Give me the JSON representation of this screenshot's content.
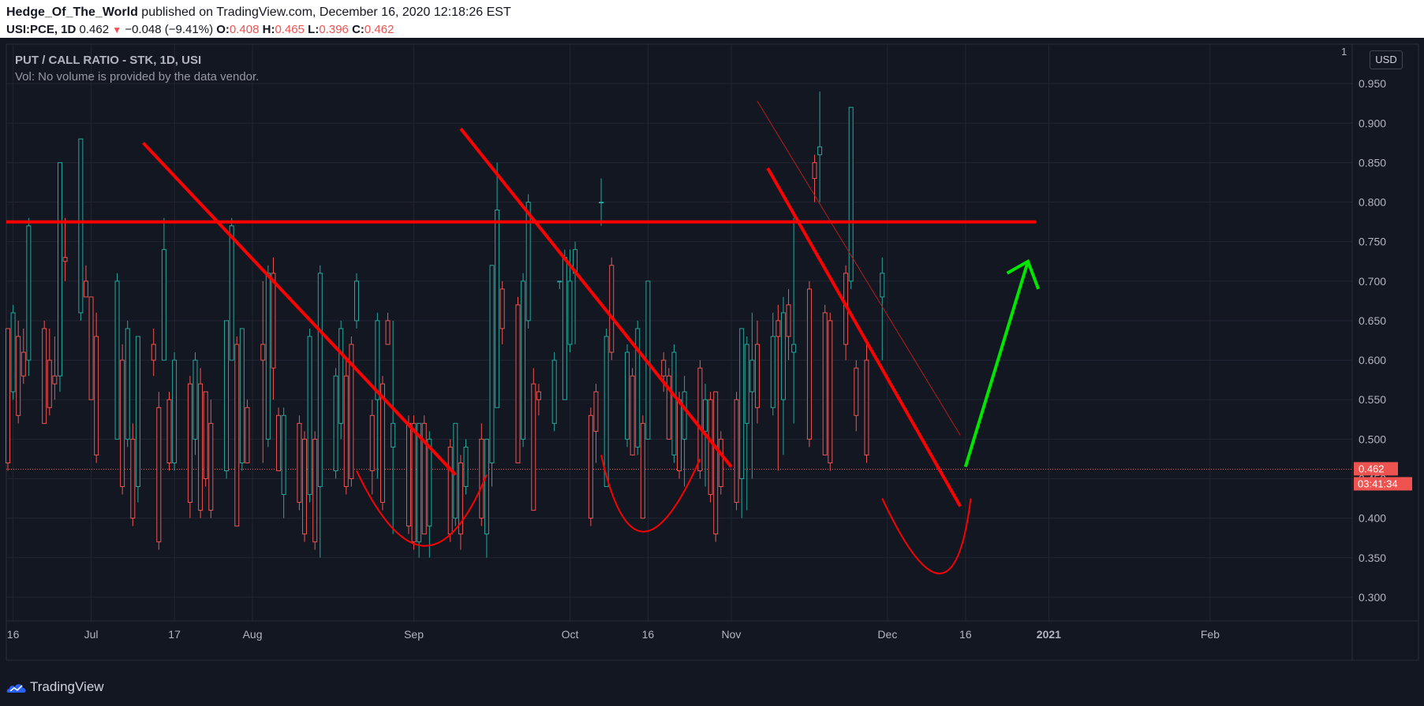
{
  "header": {
    "author": "Hedge_Of_The_World",
    "published_text": "published on TradingView.com, December 16, 2020 12:18:26 EST",
    "symbol": "USI:PCE, 1D",
    "last": "0.462",
    "change": "−0.048 (−9.41%)",
    "o_label": "O:",
    "o_value": "0.408",
    "h_label": "H:",
    "h_value": "0.465",
    "l_label": "L:",
    "l_value": "0.396",
    "c_label": "C:",
    "c_value": "0.462"
  },
  "legend": {
    "title": "PUT / CALL RATIO - STK, 1D, USI",
    "volume_note": "Vol: No volume is provided by the data vendor."
  },
  "axis": {
    "currency": "USD",
    "top_tick": "1",
    "price_label": "0.462",
    "countdown_label": "03:41:34"
  },
  "footer": {
    "brand": "TradingView"
  },
  "colors": {
    "up": "#26a69a",
    "down": "#ef5350",
    "line_red": "#ff0000",
    "arrow_green": "#00e600",
    "grid": "#232632",
    "background": "#131722"
  },
  "chart_data": {
    "type": "candlestick",
    "ylim": [
      0.27,
      1.0
    ],
    "y_ticks": [
      0.3,
      0.35,
      0.4,
      0.45,
      0.5,
      0.55,
      0.6,
      0.65,
      0.7,
      0.75,
      0.8,
      0.85,
      0.9,
      0.95
    ],
    "y_tick_labels": [
      "0.300",
      "0.350",
      "0.400",
      "0.450",
      "0.500",
      "0.550",
      "0.600",
      "0.650",
      "0.700",
      "0.750",
      "0.800",
      "0.850",
      "0.900",
      "0.950"
    ],
    "date_range": [
      "2020-06-15",
      "2021-02-28"
    ],
    "x_ticks": [
      {
        "date": "2020-06-16",
        "label": "16",
        "bold": false
      },
      {
        "date": "2020-07-01",
        "label": "Jul",
        "bold": false
      },
      {
        "date": "2020-07-17",
        "label": "17",
        "bold": false
      },
      {
        "date": "2020-08-01",
        "label": "Aug",
        "bold": false
      },
      {
        "date": "2020-09-01",
        "label": "Sep",
        "bold": false
      },
      {
        "date": "2020-10-01",
        "label": "Oct",
        "bold": false
      },
      {
        "date": "2020-10-16",
        "label": "16",
        "bold": false
      },
      {
        "date": "2020-11-01",
        "label": "Nov",
        "bold": false
      },
      {
        "date": "2020-12-01",
        "label": "Dec",
        "bold": false
      },
      {
        "date": "2020-12-16",
        "label": "16",
        "bold": false
      },
      {
        "date": "2021-01-01",
        "label": "2021",
        "bold": true
      },
      {
        "date": "2021-02-01",
        "label": "Feb",
        "bold": false
      }
    ],
    "last_price": 0.462,
    "candles": [
      {
        "d": "2020-06-15",
        "o": 0.64,
        "h": 0.64,
        "l": 0.46,
        "c": 0.47
      },
      {
        "d": "2020-06-16",
        "o": 0.56,
        "h": 0.67,
        "l": 0.55,
        "c": 0.66
      },
      {
        "d": "2020-06-17",
        "o": 0.63,
        "h": 0.65,
        "l": 0.52,
        "c": 0.53
      },
      {
        "d": "2020-06-18",
        "o": 0.61,
        "h": 0.64,
        "l": 0.57,
        "c": 0.58
      },
      {
        "d": "2020-06-19",
        "o": 0.6,
        "h": 0.78,
        "l": 0.58,
        "c": 0.77
      },
      {
        "d": "2020-06-22",
        "o": 0.64,
        "h": 0.65,
        "l": 0.52,
        "c": 0.52
      },
      {
        "d": "2020-06-23",
        "o": 0.6,
        "h": 0.64,
        "l": 0.53,
        "c": 0.54
      },
      {
        "d": "2020-06-24",
        "o": 0.58,
        "h": 0.63,
        "l": 0.55,
        "c": 0.57
      },
      {
        "d": "2020-06-25",
        "o": 0.58,
        "h": 0.85,
        "l": 0.56,
        "c": 0.85
      },
      {
        "d": "2020-06-26",
        "o": 0.73,
        "h": 0.78,
        "l": 0.7,
        "c": 0.725
      },
      {
        "d": "2020-06-29",
        "o": 0.66,
        "h": 0.88,
        "l": 0.65,
        "c": 0.88
      },
      {
        "d": "2020-06-30",
        "o": 0.7,
        "h": 0.72,
        "l": 0.68,
        "c": 0.68
      },
      {
        "d": "2020-07-01",
        "o": 0.68,
        "h": 0.68,
        "l": 0.55,
        "c": 0.55
      },
      {
        "d": "2020-07-02",
        "o": 0.63,
        "h": 0.66,
        "l": 0.47,
        "c": 0.48
      },
      {
        "d": "2020-07-06",
        "o": 0.5,
        "h": 0.71,
        "l": 0.5,
        "c": 0.7
      },
      {
        "d": "2020-07-07",
        "o": 0.6,
        "h": 0.62,
        "l": 0.43,
        "c": 0.44
      },
      {
        "d": "2020-07-08",
        "o": 0.5,
        "h": 0.65,
        "l": 0.49,
        "c": 0.64
      },
      {
        "d": "2020-07-09",
        "o": 0.5,
        "h": 0.52,
        "l": 0.39,
        "c": 0.4
      },
      {
        "d": "2020-07-10",
        "o": 0.44,
        "h": 0.63,
        "l": 0.42,
        "c": 0.63
      },
      {
        "d": "2020-07-13",
        "o": 0.62,
        "h": 0.64,
        "l": 0.58,
        "c": 0.6
      },
      {
        "d": "2020-07-14",
        "o": 0.54,
        "h": 0.56,
        "l": 0.36,
        "c": 0.37
      },
      {
        "d": "2020-07-15",
        "o": 0.6,
        "h": 0.78,
        "l": 0.6,
        "c": 0.74
      },
      {
        "d": "2020-07-16",
        "o": 0.55,
        "h": 0.56,
        "l": 0.46,
        "c": 0.47
      },
      {
        "d": "2020-07-17",
        "o": 0.47,
        "h": 0.61,
        "l": 0.46,
        "c": 0.6
      },
      {
        "d": "2020-07-20",
        "o": 0.57,
        "h": 0.58,
        "l": 0.4,
        "c": 0.42
      },
      {
        "d": "2020-07-21",
        "o": 0.5,
        "h": 0.61,
        "l": 0.48,
        "c": 0.6
      },
      {
        "d": "2020-07-22",
        "o": 0.57,
        "h": 0.59,
        "l": 0.4,
        "c": 0.41
      },
      {
        "d": "2020-07-23",
        "o": 0.56,
        "h": 0.56,
        "l": 0.44,
        "c": 0.45
      },
      {
        "d": "2020-07-24",
        "o": 0.52,
        "h": 0.55,
        "l": 0.4,
        "c": 0.41
      },
      {
        "d": "2020-07-27",
        "o": 0.46,
        "h": 0.65,
        "l": 0.45,
        "c": 0.65
      },
      {
        "d": "2020-07-28",
        "o": 0.6,
        "h": 0.78,
        "l": 0.6,
        "c": 0.77
      },
      {
        "d": "2020-07-29",
        "o": 0.62,
        "h": 0.63,
        "l": 0.39,
        "c": 0.39
      },
      {
        "d": "2020-07-30",
        "o": 0.47,
        "h": 0.64,
        "l": 0.46,
        "c": 0.64
      },
      {
        "d": "2020-07-31",
        "o": 0.54,
        "h": 0.55,
        "l": 0.47,
        "c": 0.47
      },
      {
        "d": "2020-08-03",
        "o": 0.62,
        "h": 0.7,
        "l": 0.47,
        "c": 0.6
      },
      {
        "d": "2020-08-04",
        "o": 0.5,
        "h": 0.72,
        "l": 0.49,
        "c": 0.71
      },
      {
        "d": "2020-08-05",
        "o": 0.71,
        "h": 0.73,
        "l": 0.55,
        "c": 0.59
      },
      {
        "d": "2020-08-06",
        "o": 0.53,
        "h": 0.54,
        "l": 0.46,
        "c": 0.46
      },
      {
        "d": "2020-08-07",
        "o": 0.43,
        "h": 0.54,
        "l": 0.4,
        "c": 0.53
      },
      {
        "d": "2020-08-10",
        "o": 0.52,
        "h": 0.53,
        "l": 0.41,
        "c": 0.42
      },
      {
        "d": "2020-08-11",
        "o": 0.5,
        "h": 0.51,
        "l": 0.37,
        "c": 0.38
      },
      {
        "d": "2020-08-12",
        "o": 0.43,
        "h": 0.64,
        "l": 0.42,
        "c": 0.63
      },
      {
        "d": "2020-08-13",
        "o": 0.5,
        "h": 0.51,
        "l": 0.36,
        "c": 0.37
      },
      {
        "d": "2020-08-14",
        "o": 0.44,
        "h": 0.72,
        "l": 0.35,
        "c": 0.71
      },
      {
        "d": "2020-08-17",
        "o": 0.46,
        "h": 0.59,
        "l": 0.45,
        "c": 0.58
      },
      {
        "d": "2020-08-18",
        "o": 0.52,
        "h": 0.65,
        "l": 0.5,
        "c": 0.64
      },
      {
        "d": "2020-08-19",
        "o": 0.58,
        "h": 0.6,
        "l": 0.43,
        "c": 0.44
      },
      {
        "d": "2020-08-20",
        "o": 0.62,
        "h": 0.63,
        "l": 0.44,
        "c": 0.45
      },
      {
        "d": "2020-08-21",
        "o": 0.65,
        "h": 0.71,
        "l": 0.64,
        "c": 0.7
      },
      {
        "d": "2020-08-24",
        "o": 0.53,
        "h": 0.55,
        "l": 0.43,
        "c": 0.46
      },
      {
        "d": "2020-08-25",
        "o": 0.55,
        "h": 0.66,
        "l": 0.45,
        "c": 0.65
      },
      {
        "d": "2020-08-26",
        "o": 0.57,
        "h": 0.58,
        "l": 0.41,
        "c": 0.42
      },
      {
        "d": "2020-08-27",
        "o": 0.65,
        "h": 0.66,
        "l": 0.62,
        "c": 0.62
      },
      {
        "d": "2020-08-28",
        "o": 0.49,
        "h": 0.65,
        "l": 0.38,
        "c": 0.52
      },
      {
        "d": "2020-08-31",
        "o": 0.52,
        "h": 0.53,
        "l": 0.38,
        "c": 0.39
      },
      {
        "d": "2020-09-01",
        "o": 0.52,
        "h": 0.53,
        "l": 0.36,
        "c": 0.37
      },
      {
        "d": "2020-09-02",
        "o": 0.37,
        "h": 0.52,
        "l": 0.35,
        "c": 0.52
      },
      {
        "d": "2020-09-03",
        "o": 0.52,
        "h": 0.53,
        "l": 0.38,
        "c": 0.38
      },
      {
        "d": "2020-09-04",
        "o": 0.39,
        "h": 0.51,
        "l": 0.35,
        "c": 0.5
      },
      {
        "d": "2020-09-08",
        "o": 0.49,
        "h": 0.5,
        "l": 0.37,
        "c": 0.38
      },
      {
        "d": "2020-09-09",
        "o": 0.4,
        "h": 0.52,
        "l": 0.39,
        "c": 0.52
      },
      {
        "d": "2020-09-10",
        "o": 0.47,
        "h": 0.48,
        "l": 0.36,
        "c": 0.38
      },
      {
        "d": "2020-09-11",
        "o": 0.44,
        "h": 0.5,
        "l": 0.43,
        "c": 0.49
      },
      {
        "d": "2020-09-14",
        "o": 0.5,
        "h": 0.52,
        "l": 0.39,
        "c": 0.4
      },
      {
        "d": "2020-09-15",
        "o": 0.38,
        "h": 0.5,
        "l": 0.35,
        "c": 0.5
      },
      {
        "d": "2020-09-16",
        "o": 0.47,
        "h": 0.72,
        "l": 0.44,
        "c": 0.72
      },
      {
        "d": "2020-09-17",
        "o": 0.54,
        "h": 0.85,
        "l": 0.54,
        "c": 0.79
      },
      {
        "d": "2020-09-18",
        "o": 0.69,
        "h": 0.7,
        "l": 0.62,
        "c": 0.64
      },
      {
        "d": "2020-09-21",
        "o": 0.67,
        "h": 0.68,
        "l": 0.47,
        "c": 0.47
      },
      {
        "d": "2020-09-22",
        "o": 0.5,
        "h": 0.71,
        "l": 0.49,
        "c": 0.7
      },
      {
        "d": "2020-09-23",
        "o": 0.65,
        "h": 0.81,
        "l": 0.64,
        "c": 0.8
      },
      {
        "d": "2020-09-24",
        "o": 0.57,
        "h": 0.59,
        "l": 0.41,
        "c": 0.41
      },
      {
        "d": "2020-09-25",
        "o": 0.56,
        "h": 0.57,
        "l": 0.53,
        "c": 0.55
      },
      {
        "d": "2020-09-28",
        "o": 0.52,
        "h": 0.61,
        "l": 0.51,
        "c": 0.6
      },
      {
        "d": "2020-09-29",
        "o": 0.7,
        "h": 0.7,
        "l": 0.69,
        "c": 0.7
      },
      {
        "d": "2020-09-30",
        "o": 0.55,
        "h": 0.74,
        "l": 0.55,
        "c": 0.73
      },
      {
        "d": "2020-10-01",
        "o": 0.62,
        "h": 0.74,
        "l": 0.61,
        "c": 0.7
      },
      {
        "d": "2020-10-02",
        "o": 0.71,
        "h": 0.75,
        "l": 0.62,
        "c": 0.74
      },
      {
        "d": "2020-10-05",
        "o": 0.53,
        "h": 0.54,
        "l": 0.39,
        "c": 0.4
      },
      {
        "d": "2020-10-06",
        "o": 0.56,
        "h": 0.57,
        "l": 0.47,
        "c": 0.51
      },
      {
        "d": "2020-10-07",
        "o": 0.8,
        "h": 0.83,
        "l": 0.77,
        "c": 0.8
      },
      {
        "d": "2020-10-08",
        "o": 0.44,
        "h": 0.64,
        "l": 0.44,
        "c": 0.63
      },
      {
        "d": "2020-10-09",
        "o": 0.72,
        "h": 0.73,
        "l": 0.6,
        "c": 0.61
      },
      {
        "d": "2020-10-12",
        "o": 0.5,
        "h": 0.62,
        "l": 0.49,
        "c": 0.61
      },
      {
        "d": "2020-10-13",
        "o": 0.58,
        "h": 0.59,
        "l": 0.48,
        "c": 0.48
      },
      {
        "d": "2020-10-14",
        "o": 0.49,
        "h": 0.65,
        "l": 0.48,
        "c": 0.64
      },
      {
        "d": "2020-10-15",
        "o": 0.52,
        "h": 0.53,
        "l": 0.4,
        "c": 0.4
      },
      {
        "d": "2020-10-16",
        "o": 0.5,
        "h": 0.7,
        "l": 0.5,
        "c": 0.7
      },
      {
        "d": "2020-10-19",
        "o": 0.6,
        "h": 0.61,
        "l": 0.56,
        "c": 0.58
      },
      {
        "d": "2020-10-20",
        "o": 0.58,
        "h": 0.59,
        "l": 0.5,
        "c": 0.5
      },
      {
        "d": "2020-10-21",
        "o": 0.48,
        "h": 0.62,
        "l": 0.47,
        "c": 0.61
      },
      {
        "d": "2020-10-22",
        "o": 0.55,
        "h": 0.56,
        "l": 0.45,
        "c": 0.46
      },
      {
        "d": "2020-10-23",
        "o": 0.5,
        "h": 0.58,
        "l": 0.44,
        "c": 0.56
      },
      {
        "d": "2020-10-26",
        "o": 0.59,
        "h": 0.6,
        "l": 0.45,
        "c": 0.46
      },
      {
        "d": "2020-10-27",
        "o": 0.51,
        "h": 0.57,
        "l": 0.44,
        "c": 0.55
      },
      {
        "d": "2020-10-28",
        "o": 0.55,
        "h": 0.56,
        "l": 0.42,
        "c": 0.43
      },
      {
        "d": "2020-10-29",
        "o": 0.56,
        "h": 0.56,
        "l": 0.37,
        "c": 0.38
      },
      {
        "d": "2020-10-30",
        "o": 0.5,
        "h": 0.51,
        "l": 0.43,
        "c": 0.44
      },
      {
        "d": "2020-11-02",
        "o": 0.55,
        "h": 0.56,
        "l": 0.41,
        "c": 0.42
      },
      {
        "d": "2020-11-03",
        "o": 0.45,
        "h": 0.64,
        "l": 0.4,
        "c": 0.64
      },
      {
        "d": "2020-11-04",
        "o": 0.52,
        "h": 0.63,
        "l": 0.41,
        "c": 0.62
      },
      {
        "d": "2020-11-05",
        "o": 0.56,
        "h": 0.66,
        "l": 0.45,
        "c": 0.6
      },
      {
        "d": "2020-11-06",
        "o": 0.62,
        "h": 0.65,
        "l": 0.52,
        "c": 0.54
      },
      {
        "d": "2020-11-09",
        "o": 0.54,
        "h": 0.66,
        "l": 0.53,
        "c": 0.63
      },
      {
        "d": "2020-11-10",
        "o": 0.65,
        "h": 0.67,
        "l": 0.46,
        "c": 0.63
      },
      {
        "d": "2020-11-11",
        "o": 0.55,
        "h": 0.68,
        "l": 0.48,
        "c": 0.66
      },
      {
        "d": "2020-11-12",
        "o": 0.67,
        "h": 0.69,
        "l": 0.6,
        "c": 0.63
      },
      {
        "d": "2020-11-13",
        "o": 0.61,
        "h": 0.78,
        "l": 0.52,
        "c": 0.62
      },
      {
        "d": "2020-11-16",
        "o": 0.69,
        "h": 0.7,
        "l": 0.49,
        "c": 0.5
      },
      {
        "d": "2020-11-17",
        "o": 0.85,
        "h": 0.86,
        "l": 0.8,
        "c": 0.83
      },
      {
        "d": "2020-11-18",
        "o": 0.86,
        "h": 0.94,
        "l": 0.8,
        "c": 0.87
      },
      {
        "d": "2020-11-19",
        "o": 0.66,
        "h": 0.67,
        "l": 0.48,
        "c": 0.48
      },
      {
        "d": "2020-11-20",
        "o": 0.65,
        "h": 0.66,
        "l": 0.46,
        "c": 0.47
      },
      {
        "d": "2020-11-23",
        "o": 0.71,
        "h": 0.72,
        "l": 0.6,
        "c": 0.62
      },
      {
        "d": "2020-11-24",
        "o": 0.7,
        "h": 0.92,
        "l": 0.69,
        "c": 0.92
      },
      {
        "d": "2020-11-25",
        "o": 0.59,
        "h": 0.6,
        "l": 0.51,
        "c": 0.53
      },
      {
        "d": "2020-11-27",
        "o": 0.6,
        "h": 0.62,
        "l": 0.47,
        "c": 0.48
      },
      {
        "d": "2020-11-30",
        "o": 0.68,
        "h": 0.73,
        "l": 0.6,
        "c": 0.71
      }
    ],
    "annotations": [
      {
        "kind": "horizontal",
        "price": 0.775
      },
      {
        "kind": "trendline",
        "width": "thick",
        "from": {
          "d": "2020-07-11",
          "p": 0.875
        },
        "to": {
          "d": "2020-09-09",
          "p": 0.455
        }
      },
      {
        "kind": "trendline",
        "width": "thick",
        "from": {
          "d": "2020-09-10",
          "p": 0.893
        },
        "to": {
          "d": "2020-11-01",
          "p": 0.465
        }
      },
      {
        "kind": "trendline",
        "width": "thick",
        "from": {
          "d": "2020-11-08",
          "p": 0.843
        },
        "to": {
          "d": "2020-12-15",
          "p": 0.415
        }
      },
      {
        "kind": "trendline",
        "width": "thin",
        "from": {
          "d": "2020-11-06",
          "p": 0.928
        },
        "to": {
          "d": "2020-12-15",
          "p": 0.505
        }
      },
      {
        "kind": "arc",
        "center": {
          "d": "2020-09-03",
          "p": 0.365
        },
        "left": {
          "d": "2020-08-21",
          "p": 0.46
        },
        "right": {
          "d": "2020-09-15",
          "p": 0.455
        }
      },
      {
        "kind": "arc",
        "center": {
          "d": "2020-10-15",
          "p": 0.383
        },
        "left": {
          "d": "2020-10-07",
          "p": 0.48
        },
        "right": {
          "d": "2020-10-26",
          "p": 0.475
        }
      },
      {
        "kind": "arc",
        "center": {
          "d": "2020-12-11",
          "p": 0.33
        },
        "left": {
          "d": "2020-11-30",
          "p": 0.425
        },
        "right": {
          "d": "2020-12-17",
          "p": 0.425
        }
      },
      {
        "kind": "arrow",
        "from": {
          "d": "2020-12-16",
          "p": 0.465
        },
        "to": {
          "d": "2020-12-28",
          "p": 0.725
        },
        "left_head": {
          "d": "2020-12-24",
          "p": 0.71
        },
        "right_head": {
          "d": "2020-12-30",
          "p": 0.69
        }
      }
    ]
  }
}
